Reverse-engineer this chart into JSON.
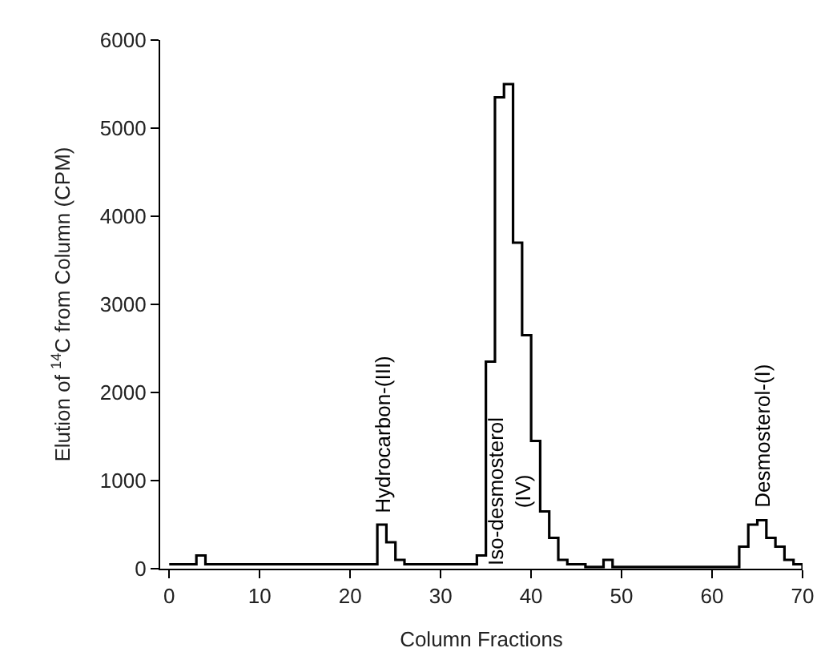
{
  "chart_data": {
    "type": "step",
    "xlabel": "Column Fractions",
    "ylabel": "Elution of $^{14}$C from Column (CPM)",
    "series": [
      {
        "color": "#000000",
        "x": [
          0,
          3,
          4,
          23,
          24,
          25,
          26,
          34,
          35,
          36,
          37,
          38,
          39,
          40,
          41,
          42,
          43,
          44,
          46,
          48,
          49,
          63,
          64,
          65,
          66,
          67,
          68,
          69,
          70
        ],
        "values": [
          50,
          150,
          50,
          500,
          300,
          100,
          50,
          150,
          2350,
          5350,
          5500,
          3700,
          2650,
          1450,
          650,
          350,
          100,
          50,
          20,
          100,
          20,
          250,
          500,
          550,
          350,
          250,
          100,
          50,
          0
        ]
      }
    ],
    "annotations": [
      {
        "text": "Hydrocarbon-(III)",
        "x": 23.5,
        "y": 600
      },
      "Iso-desmosterol\n(IV)",
      {
        "text": "Desmosterol-(I)",
        "x": 65.5,
        "y": 650
      }
    ],
    "xlim": [
      -1,
      70
    ],
    "xticks": [
      0,
      10,
      20,
      30,
      40,
      50,
      60,
      70
    ],
    "ylim": [
      0,
      6000
    ],
    "yticks": [
      0,
      1000,
      2000,
      3000,
      4000,
      5000,
      6000
    ],
    "marker": "none",
    "line_style": "solid"
  }
}
